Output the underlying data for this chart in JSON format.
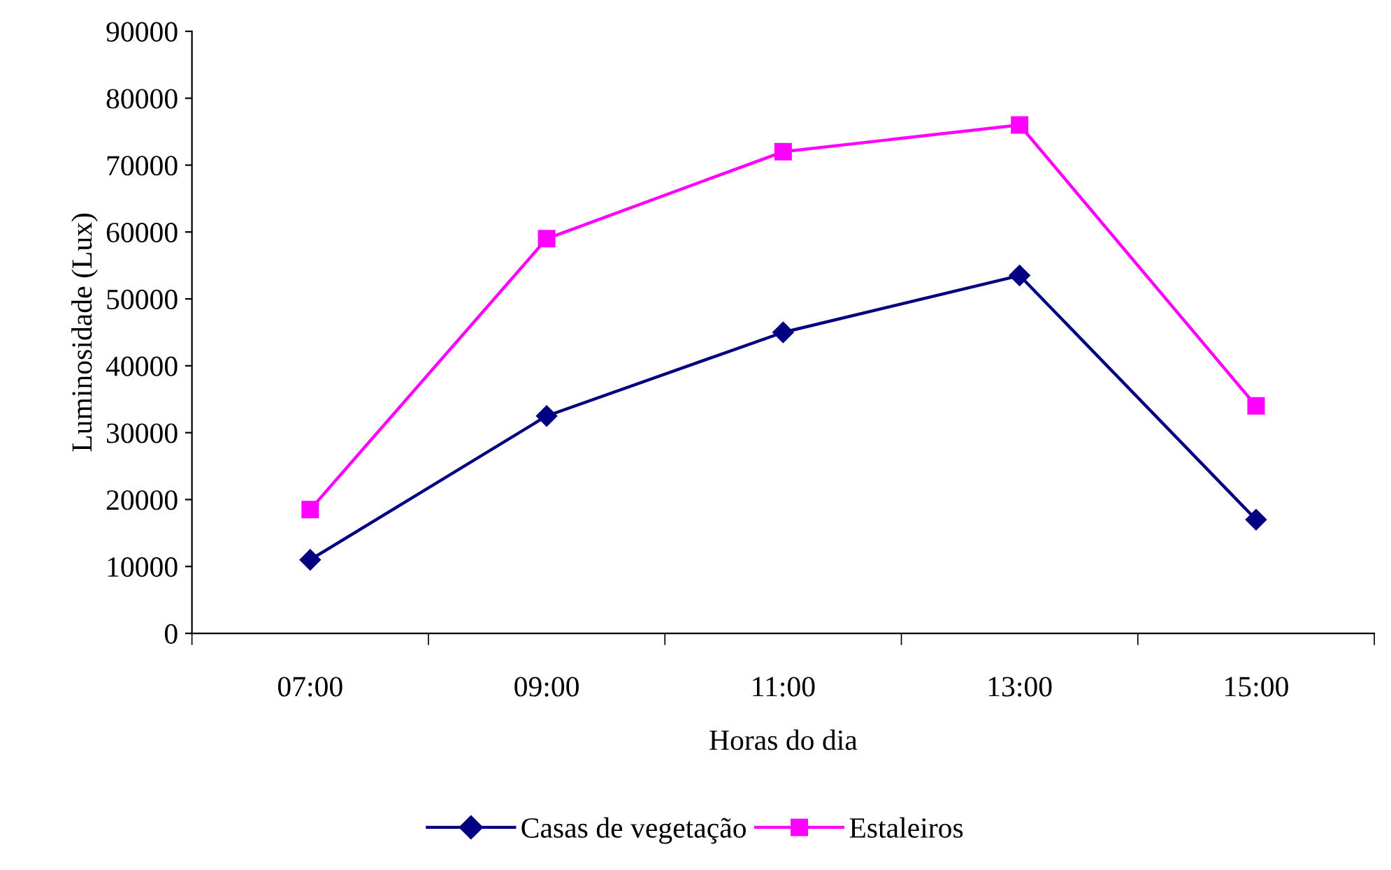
{
  "chart_data": {
    "type": "line",
    "xlabel": "Horas do dia",
    "ylabel": "Luminosidade (Lux)",
    "categories": [
      "07:00",
      "09:00",
      "11:00",
      "13:00",
      "15:00"
    ],
    "series": [
      {
        "name": "Casas de vegetação",
        "color": "#000080",
        "marker": "diamond",
        "values": [
          11000,
          32500,
          45000,
          53500,
          17000
        ]
      },
      {
        "name": "Estaleiros",
        "color": "#ff00ff",
        "marker": "square",
        "values": [
          18500,
          59000,
          72000,
          76000,
          34000
        ]
      }
    ],
    "ylim": [
      0,
      90000
    ],
    "yticks": [
      0,
      10000,
      20000,
      30000,
      40000,
      50000,
      60000,
      70000,
      80000,
      90000
    ],
    "grid": false,
    "legend": "bottom",
    "line_style": "solid"
  }
}
